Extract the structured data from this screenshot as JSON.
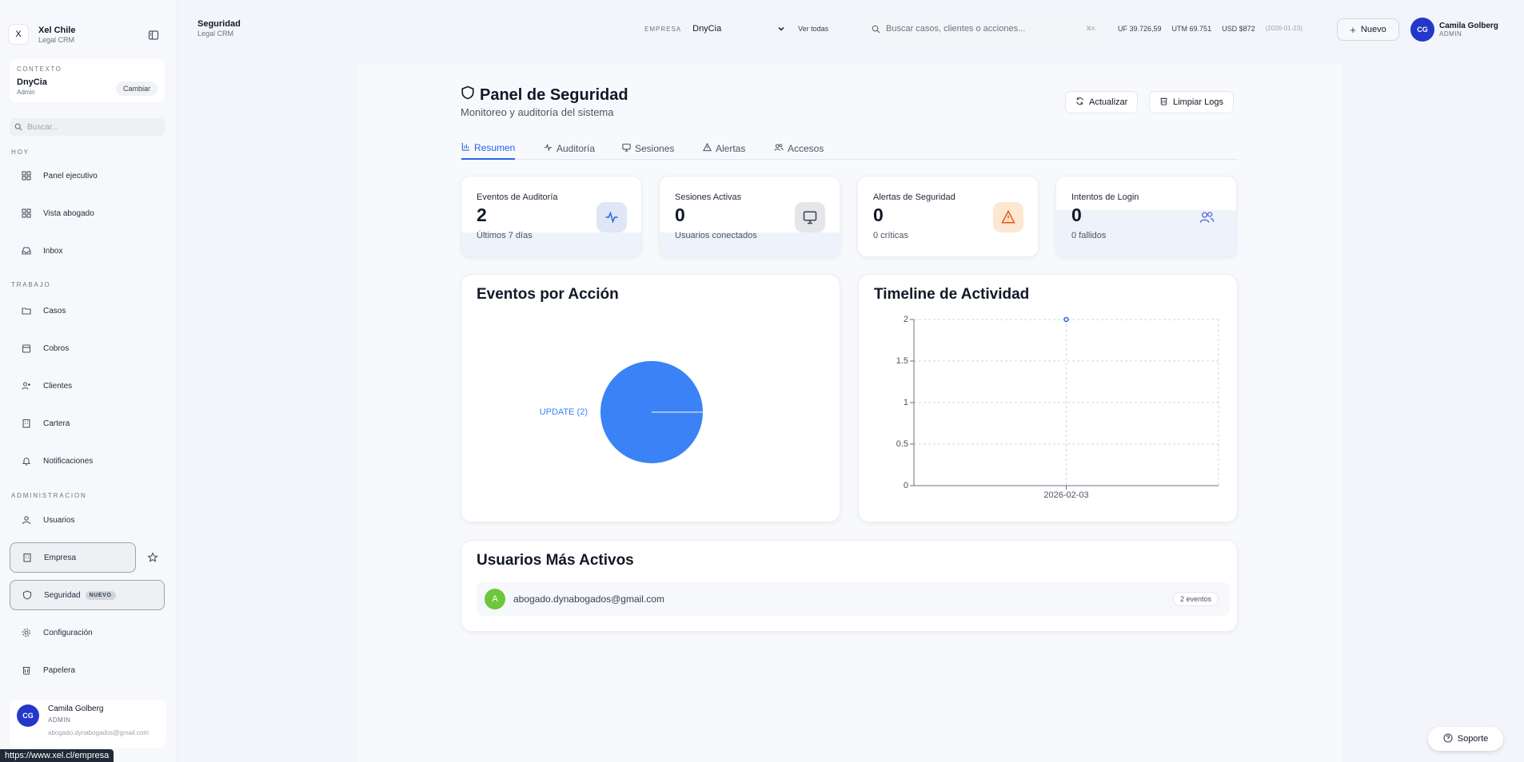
{
  "sidebar": {
    "brand": {
      "logo": "X",
      "name": "Xel Chile",
      "sub": "Legal CRM"
    },
    "context": {
      "label": "CONTEXTO",
      "name": "DnyCia",
      "role": "Admin",
      "change_label": "Cambiar"
    },
    "search_placeholder": "Buscar...",
    "sections": {
      "hoy": "HOY",
      "trabajo": "TRABAJO",
      "admin": "ADMINISTRACION"
    },
    "items": {
      "panel": "Panel ejecutivo",
      "vista": "Vista abogado",
      "inbox": "Inbox",
      "casos": "Casos",
      "cobros": "Cobros",
      "clientes": "Clientes",
      "cartera": "Cartera",
      "notificaciones": "Notificaciones",
      "usuarios": "Usuarios",
      "empresa": "Empresa",
      "seguridad": "Seguridad",
      "seguridad_badge": "NUEVO",
      "configuracion": "Configuración",
      "papelera": "Papelera"
    },
    "user": {
      "initials": "CG",
      "name": "Camila Golberg",
      "role": "ADMIN",
      "email": "abogado.dynabogados@gmail.com"
    }
  },
  "status_url": "https://www.xel.cl/empresa",
  "topbar": {
    "title": "Seguridad",
    "subtitle": "Legal CRM",
    "empresa_label": "EMPRESA",
    "empresa_value": "DnyCia",
    "ver_todas": "Ver todas",
    "search_placeholder": "Buscar casos, clientes o acciones...",
    "search_kbd": "⌘K",
    "uf": "UF 39.726,59",
    "utm": "UTM 69.751",
    "usd": "USD $872",
    "rate_date": "(2026-01-23)",
    "new_label": "Nuevo",
    "user": {
      "initials": "CG",
      "name": "Camila Golberg",
      "role": "ADMIN"
    }
  },
  "header": {
    "title": "Panel de Seguridad",
    "subtitle": "Monitoreo y auditoría del sistema",
    "refresh_label": "Actualizar",
    "clear_label": "Limpiar Logs"
  },
  "tabs": [
    "Resumen",
    "Auditoría",
    "Sesiones",
    "Alertas",
    "Accesos"
  ],
  "stats": [
    {
      "label": "Eventos de Auditoría",
      "value": "2",
      "sub": "Últimos 7 días"
    },
    {
      "label": "Sesiones Activas",
      "value": "0",
      "sub": "Usuarios conectados"
    },
    {
      "label": "Alertas de Seguridad",
      "value": "0",
      "sub": "0 críticas"
    },
    {
      "label": "Intentos de Login",
      "value": "0",
      "sub": "0 fallidos"
    }
  ],
  "colors": {
    "accent": "#2563eb",
    "pie": "#3b82f6",
    "avatar": "#2338c9",
    "warning": "#ea580c"
  },
  "chart_data": [
    {
      "type": "pie",
      "title": "Eventos por Acción",
      "slices": [
        {
          "label": "UPDATE (2)",
          "category": "UPDATE",
          "value": 2
        }
      ]
    },
    {
      "type": "line",
      "title": "Timeline de Actividad",
      "x": [
        "2026-02-03"
      ],
      "series": [
        {
          "values": [
            2
          ]
        }
      ],
      "ylim": [
        0,
        2
      ],
      "yticks": [
        "0",
        "0.5",
        "1",
        "1.5",
        "2"
      ],
      "grid": true
    }
  ],
  "active_users": {
    "title": "Usuarios Más Activos",
    "rows": [
      {
        "initial": "A",
        "email": "abogado.dynabogados@gmail.com",
        "events": "2 eventos"
      }
    ]
  },
  "support_label": "Soporte"
}
